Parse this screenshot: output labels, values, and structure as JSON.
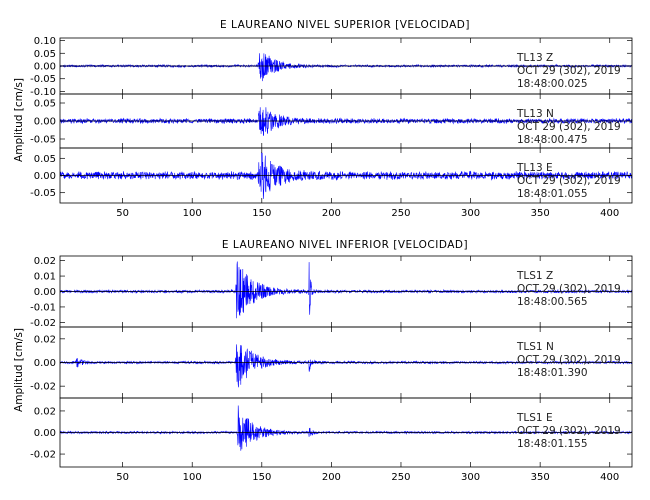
{
  "chart_data": [
    {
      "type": "line",
      "title": "E LAUREANO NIVEL SUPERIOR [VELOCIDAD]",
      "ylabel": "Amplitud [cm/s]",
      "xlabel": "",
      "xlim": [
        5,
        416
      ],
      "x_ticks": [
        "50",
        "100",
        "150",
        "200",
        "250",
        "300",
        "350",
        "400"
      ],
      "color": "#0000ff",
      "panels": [
        {
          "station": "TL13",
          "component": "Z",
          "date": "OCT 29 (302), 2019",
          "time": "18:48:00.025",
          "ylim": [
            -0.11,
            0.11
          ],
          "y_ticks": [
            "0.10",
            "0.05",
            "0.00",
            "-0.05",
            "-0.10"
          ],
          "noise_amp": 0.004,
          "events": [
            {
              "t": 149,
              "amp": 0.07,
              "decay": 10,
              "rise": 2
            }
          ]
        },
        {
          "station": "TL13",
          "component": "N",
          "date": "OCT 29 (302), 2019",
          "time": "18:48:00.475",
          "ylim": [
            -0.075,
            0.075
          ],
          "y_ticks": [
            "0.05",
            "0.00",
            "-0.05"
          ],
          "noise_amp": 0.006,
          "events": [
            {
              "t": 149,
              "amp": 0.055,
              "decay": 9,
              "rise": 2
            }
          ]
        },
        {
          "station": "TL13",
          "component": "E",
          "date": "OCT 29 (302), 2019",
          "time": "18:48:01.055",
          "ylim": [
            -0.08,
            0.08
          ],
          "y_ticks": [
            "0.05",
            "0.00",
            "-0.05"
          ],
          "noise_amp": 0.01,
          "events": [
            {
              "t": 149,
              "amp": 0.07,
              "decay": 11,
              "rise": 2
            }
          ]
        }
      ]
    },
    {
      "type": "line",
      "title": "E LAUREANO NIVEL INFERIOR [VELOCIDAD]",
      "ylabel": "Amplitud [cm/s]",
      "xlabel": "",
      "xlim": [
        5,
        416
      ],
      "x_ticks": [
        "50",
        "100",
        "150",
        "200",
        "250",
        "300",
        "350",
        "400"
      ],
      "color": "#0000ff",
      "panels": [
        {
          "station": "TLS1",
          "component": "Z",
          "date": "OCT 29 (302), 2019",
          "time": "18:48:00.565",
          "ylim": [
            -0.023,
            0.023
          ],
          "y_ticks": [
            "0.02",
            "0.01",
            "0.00",
            "-0.01",
            "-0.02"
          ],
          "noise_amp": 0.0008,
          "events": [
            {
              "t": 132,
              "amp": 0.02,
              "decay": 12,
              "rise": 1
            },
            {
              "t": 184,
              "amp": 0.02,
              "decay": 1.2,
              "rise": 0.3
            }
          ]
        },
        {
          "station": "TLS1",
          "component": "N",
          "date": "OCT 29 (302), 2019",
          "time": "18:48:01.390",
          "ylim": [
            -0.03,
            0.03
          ],
          "y_ticks": [
            "0.02",
            "0.00",
            "-0.02"
          ],
          "noise_amp": 0.0009,
          "events": [
            {
              "t": 17,
              "amp": 0.004,
              "decay": 3,
              "rise": 1
            },
            {
              "t": 132,
              "amp": 0.024,
              "decay": 11,
              "rise": 1
            },
            {
              "t": 184,
              "amp": 0.008,
              "decay": 1.5,
              "rise": 0.3
            }
          ]
        },
        {
          "station": "TLS1",
          "component": "E",
          "date": "OCT 29 (302), 2019",
          "time": "18:48:01.155",
          "ylim": [
            -0.032,
            0.032
          ],
          "y_ticks": [
            "0.02",
            "0.00",
            "-0.02"
          ],
          "noise_amp": 0.0009,
          "events": [
            {
              "t": 133,
              "amp": 0.025,
              "decay": 10,
              "rise": 1
            },
            {
              "t": 184,
              "amp": 0.005,
              "decay": 2,
              "rise": 0.3
            }
          ]
        }
      ]
    }
  ]
}
